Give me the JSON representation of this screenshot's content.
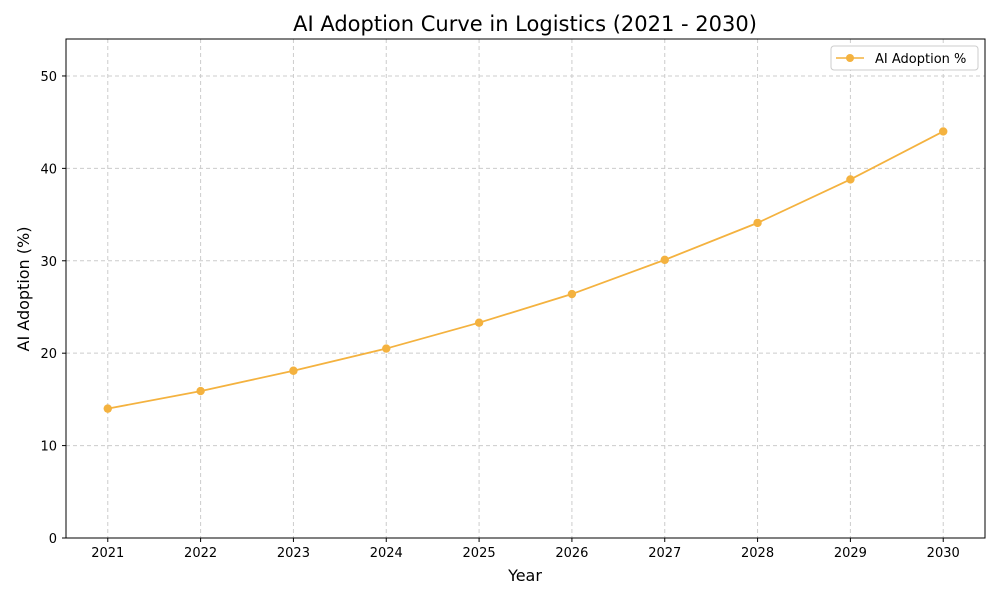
{
  "chart_data": {
    "type": "line",
    "title": "AI Adoption Curve in Logistics (2021 - 2030)",
    "xlabel": "Year",
    "ylabel": "AI Adoption (%)",
    "x": [
      2021,
      2022,
      2023,
      2024,
      2025,
      2026,
      2027,
      2028,
      2029,
      2030
    ],
    "series": [
      {
        "name": "AI Adoption %",
        "values": [
          14.0,
          15.9,
          18.1,
          20.5,
          23.3,
          26.4,
          30.1,
          34.1,
          38.8,
          44.0
        ],
        "color": "#f4b23f",
        "marker": "circle"
      }
    ],
    "xlim": [
      2020.55,
      2030.45
    ],
    "ylim": [
      0,
      54
    ],
    "xticks": [
      "2021",
      "2022",
      "2023",
      "2024",
      "2025",
      "2026",
      "2027",
      "2028",
      "2029",
      "2030"
    ],
    "yticks": [
      "0",
      "10",
      "20",
      "30",
      "40",
      "50"
    ],
    "grid": true,
    "grid_style": "dashed",
    "legend": "top-right"
  }
}
